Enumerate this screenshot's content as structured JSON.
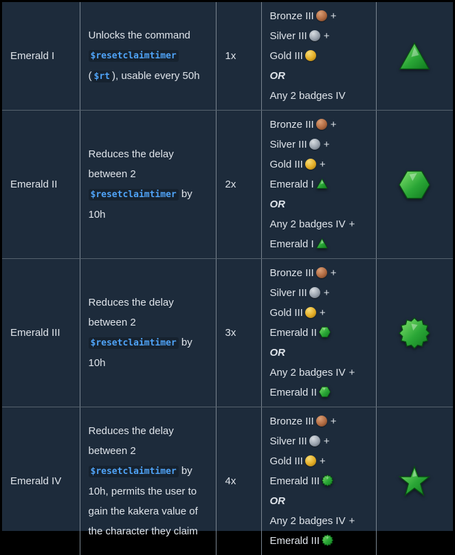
{
  "theme": {
    "background": "#1d2b3b",
    "outer_border": "#000000",
    "grid_vertical": "#79848f",
    "grid_horizontal": "#56626e",
    "text": "#dfe4ea",
    "code_text": "#4fa3f7",
    "code_background": "#16222f",
    "gem_light": "#85e470",
    "gem_mid": "#2aa636",
    "gem_dark": "#0f7a1e",
    "gem_stroke": "#0a4f14",
    "bronze": "#b06a41",
    "bronze_light": "#dca077",
    "bronze_dark": "#5f351d",
    "silver": "#9aa3ae",
    "silver_light": "#d8dde2",
    "silver_dark": "#555e68",
    "gold": "#e3ac25",
    "gold_light": "#f8dd76",
    "gold_dark": "#8a6710"
  },
  "rows": [
    {
      "name": "Emerald I",
      "cost": "1x",
      "icon_shape": "triangle",
      "icon_name": "emerald-i-icon",
      "description": [
        {
          "type": "text",
          "text": "Unlocks the command "
        },
        {
          "type": "code",
          "text": "$resetclaimtimer"
        },
        {
          "type": "text",
          "text": " ("
        },
        {
          "type": "code",
          "text": "$rt"
        },
        {
          "type": "text",
          "text": "), usable every 50h"
        }
      ],
      "requirements": [
        {
          "label": "Bronze III",
          "icon": "bronze",
          "suffix": "+",
          "emphasis": false
        },
        {
          "label": "Silver III",
          "icon": "silver",
          "suffix": "+",
          "emphasis": false
        },
        {
          "label": "Gold III",
          "icon": "gold",
          "suffix": "",
          "emphasis": false
        },
        {
          "label": "OR",
          "icon": "",
          "suffix": "",
          "emphasis": true
        },
        {
          "label": "Any 2 badges IV",
          "icon": "",
          "suffix": "",
          "emphasis": false
        }
      ]
    },
    {
      "name": "Emerald II",
      "cost": "2x",
      "icon_shape": "hexagon",
      "icon_name": "emerald-ii-icon",
      "description": [
        {
          "type": "text",
          "text": "Reduces the delay between 2 "
        },
        {
          "type": "code",
          "text": "$resetclaimtimer"
        },
        {
          "type": "text",
          "text": " by 10h"
        }
      ],
      "requirements": [
        {
          "label": "Bronze III",
          "icon": "bronze",
          "suffix": "+",
          "emphasis": false
        },
        {
          "label": "Silver III",
          "icon": "silver",
          "suffix": "+",
          "emphasis": false
        },
        {
          "label": "Gold III",
          "icon": "gold",
          "suffix": "+",
          "emphasis": false
        },
        {
          "label": "Emerald I",
          "icon": "emerald1",
          "suffix": "",
          "emphasis": false
        },
        {
          "label": "OR",
          "icon": "",
          "suffix": "",
          "emphasis": true
        },
        {
          "label": "Any 2 badges IV",
          "icon": "",
          "suffix": "+",
          "emphasis": false
        },
        {
          "label": "Emerald I",
          "icon": "emerald1",
          "suffix": "",
          "emphasis": false
        }
      ]
    },
    {
      "name": "Emerald III",
      "cost": "3x",
      "icon_shape": "burst",
      "icon_name": "emerald-iii-icon",
      "description": [
        {
          "type": "text",
          "text": "Reduces the delay between 2 "
        },
        {
          "type": "code",
          "text": "$resetclaimtimer"
        },
        {
          "type": "text",
          "text": " by 10h"
        }
      ],
      "requirements": [
        {
          "label": "Bronze III",
          "icon": "bronze",
          "suffix": "+",
          "emphasis": false
        },
        {
          "label": "Silver III",
          "icon": "silver",
          "suffix": "+",
          "emphasis": false
        },
        {
          "label": "Gold III",
          "icon": "gold",
          "suffix": "+",
          "emphasis": false
        },
        {
          "label": "Emerald II",
          "icon": "emerald2",
          "suffix": "",
          "emphasis": false
        },
        {
          "label": "OR",
          "icon": "",
          "suffix": "",
          "emphasis": true
        },
        {
          "label": "Any 2 badges IV",
          "icon": "",
          "suffix": "+",
          "emphasis": false
        },
        {
          "label": "Emerald II",
          "icon": "emerald2",
          "suffix": "",
          "emphasis": false
        }
      ]
    },
    {
      "name": "Emerald IV",
      "cost": "4x",
      "icon_shape": "star",
      "icon_name": "emerald-iv-icon",
      "description": [
        {
          "type": "text",
          "text": "Reduces the delay between 2 "
        },
        {
          "type": "code",
          "text": "$resetclaimtimer"
        },
        {
          "type": "text",
          "text": " by 10h, permits the user to gain the kakera value of the character they claim"
        }
      ],
      "requirements": [
        {
          "label": "Bronze III",
          "icon": "bronze",
          "suffix": "+",
          "emphasis": false
        },
        {
          "label": "Silver III",
          "icon": "silver",
          "suffix": "+",
          "emphasis": false
        },
        {
          "label": "Gold III",
          "icon": "gold",
          "suffix": "+",
          "emphasis": false
        },
        {
          "label": "Emerald III",
          "icon": "emerald3",
          "suffix": "",
          "emphasis": false
        },
        {
          "label": "OR",
          "icon": "",
          "suffix": "",
          "emphasis": true
        },
        {
          "label": "Any 2 badges IV",
          "icon": "",
          "suffix": "+",
          "emphasis": false
        },
        {
          "label": "Emerald III",
          "icon": "emerald3",
          "suffix": "",
          "emphasis": false
        }
      ]
    }
  ]
}
